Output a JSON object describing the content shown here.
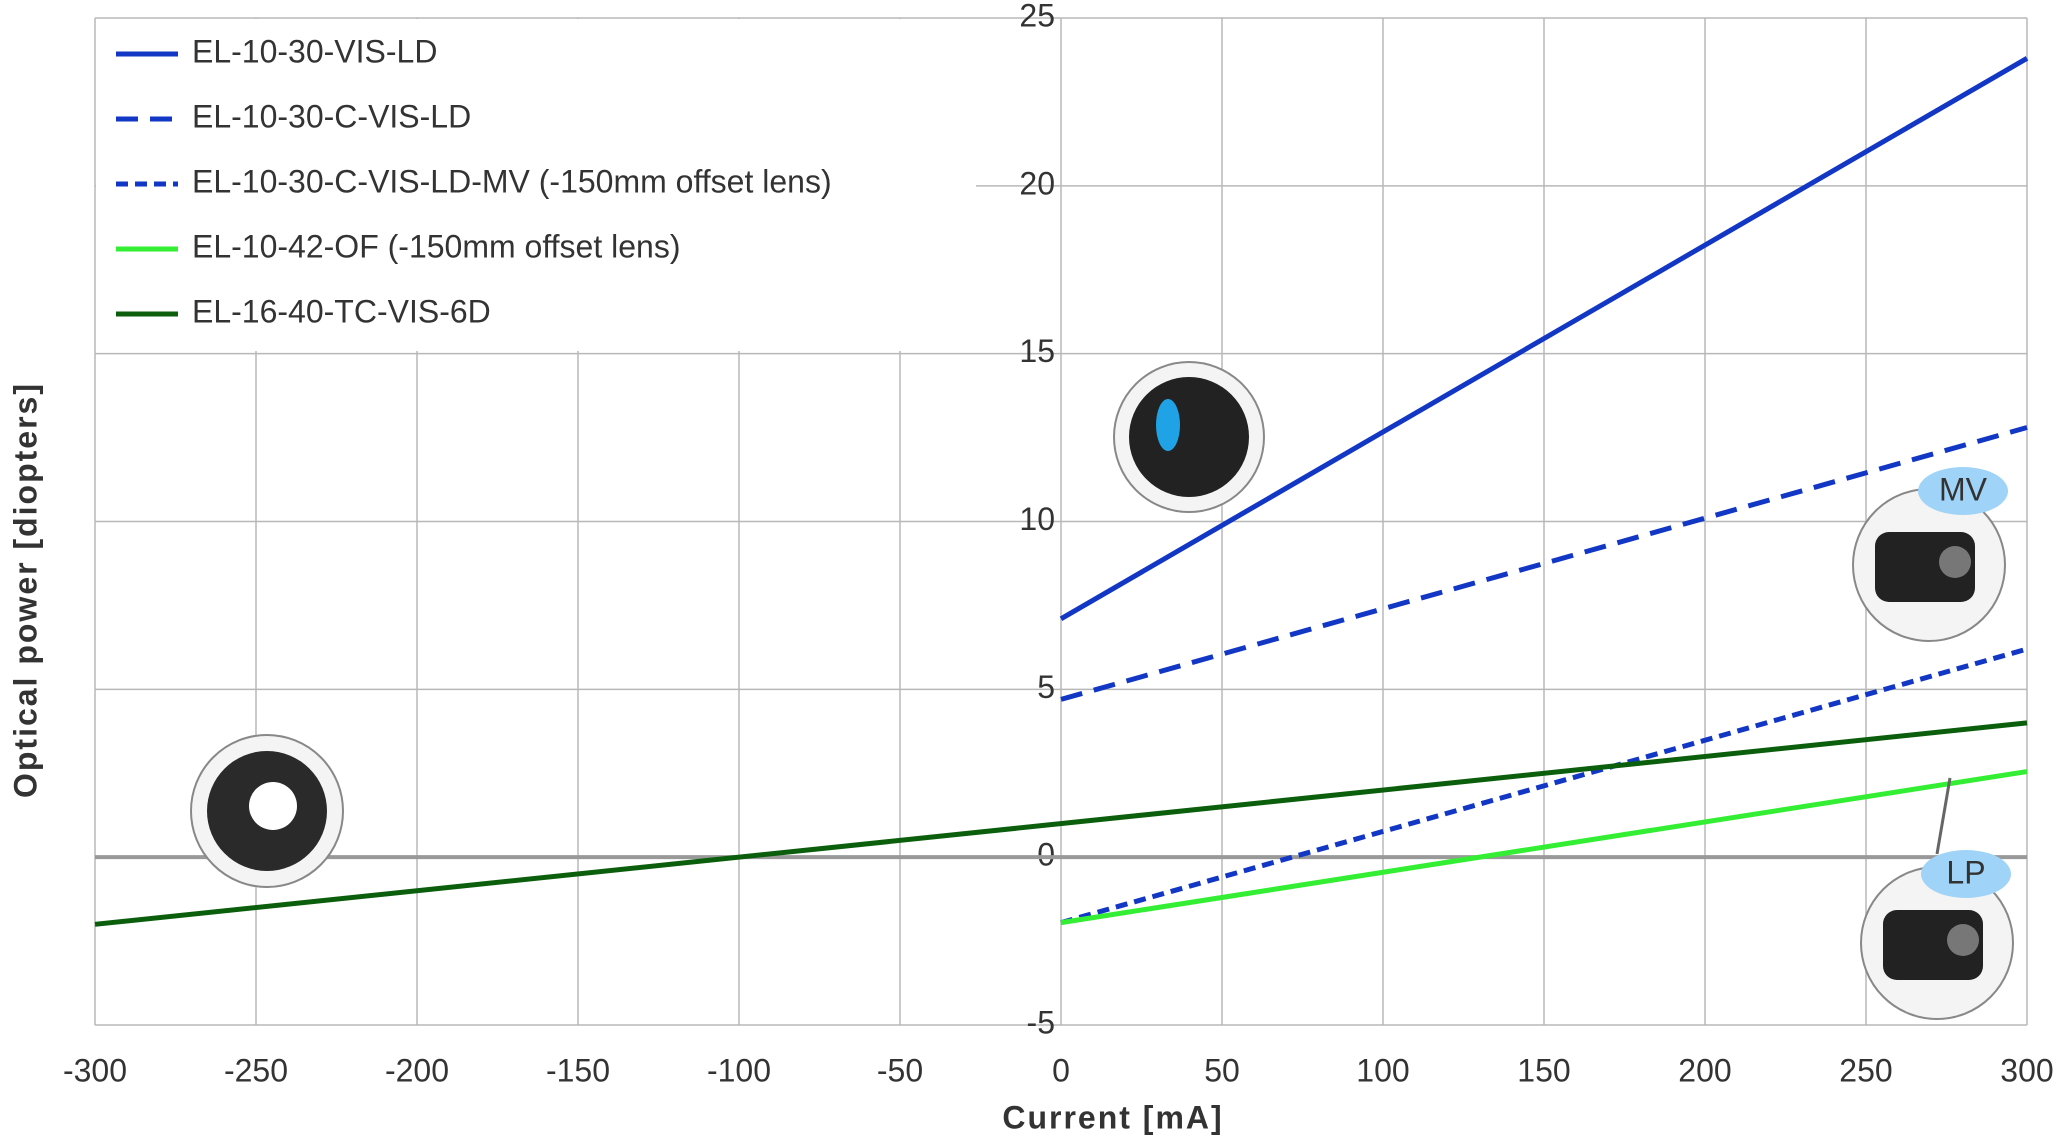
{
  "chart_data": {
    "type": "line",
    "xlabel": "Current [mA]",
    "ylabel": "Optical power [diopters]",
    "xlim": [
      -300,
      300
    ],
    "xticks": [
      -300,
      -250,
      -200,
      -150,
      -100,
      -50,
      0,
      50,
      100,
      150,
      200,
      250,
      300
    ],
    "ylim": [
      -5,
      25
    ],
    "yticks": [
      -5,
      0,
      5,
      10,
      15,
      20,
      25
    ],
    "grid": true,
    "legend": "upper left",
    "series": [
      {
        "name": "EL-10-30-VIS-LD",
        "color": "#1237c4",
        "dash": "solid",
        "x": [
          0,
          300
        ],
        "values": [
          7.1,
          23.8
        ]
      },
      {
        "name": "EL-10-30-C-VIS-LD",
        "color": "#1237c4",
        "dash": "dashed",
        "x": [
          0,
          300
        ],
        "values": [
          4.7,
          12.8
        ]
      },
      {
        "name": "EL-10-30-C-VIS-LD-MV (-150mm offset lens)",
        "color": "#1237c4",
        "dash": "dotted",
        "x": [
          0,
          300
        ],
        "values": [
          -1.95,
          6.2
        ]
      },
      {
        "name": "EL-10-42-OF (-150mm offset lens)",
        "color": "#33ee33",
        "dash": "solid",
        "x": [
          0,
          300
        ],
        "values": [
          -1.95,
          2.55
        ]
      },
      {
        "name": "EL-16-40-TC-VIS-6D",
        "color": "#0b5e0b",
        "dash": "solid",
        "x": [
          -300,
          300
        ],
        "values": [
          -2.0,
          4.0
        ]
      }
    ],
    "annotations": [
      "MV",
      "LP"
    ]
  }
}
